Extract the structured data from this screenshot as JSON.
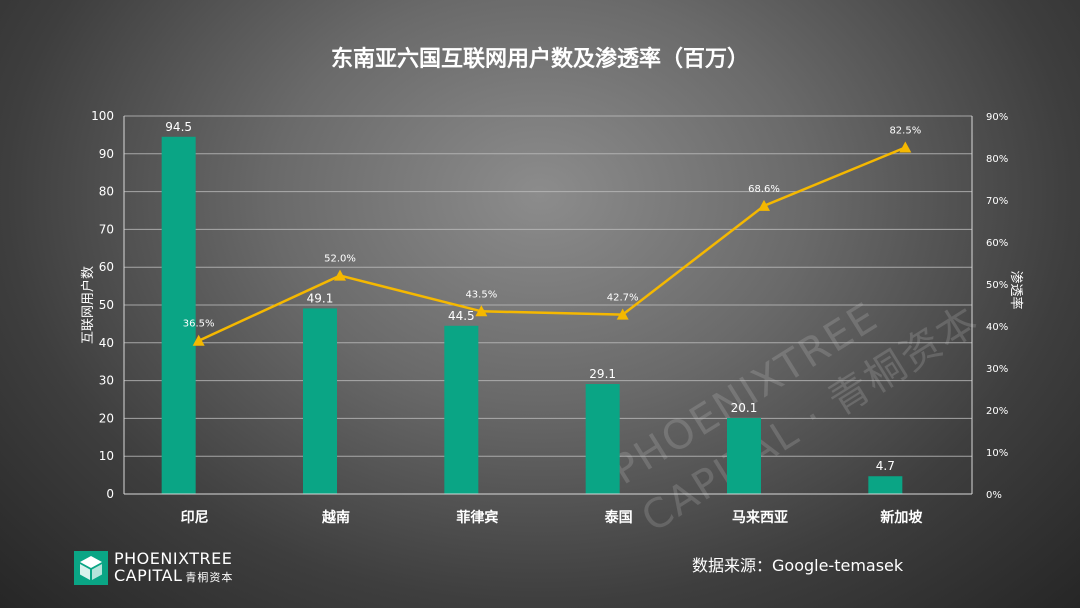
{
  "chart_data": {
    "type": "bar",
    "title": "东南亚六国互联网用户数及渗透率（百万）",
    "categories": [
      "印尼",
      "越南",
      "菲律宾",
      "泰国",
      "马来西亚",
      "新加坡"
    ],
    "series": [
      {
        "name": "互联网用户数",
        "type": "bar",
        "axis": "left",
        "values": [
          94.5,
          49.1,
          44.5,
          29.1,
          20.1,
          4.7
        ],
        "labels": [
          "94.5",
          "49.1",
          "44.5",
          "29.1",
          "20.1",
          "4.7"
        ],
        "color": "#0aa585"
      },
      {
        "name": "渗透率",
        "type": "line",
        "axis": "right",
        "values": [
          36.5,
          52.0,
          43.5,
          42.7,
          68.6,
          82.5
        ],
        "labels": [
          "36.5%",
          "52.0%",
          "43.5%",
          "42.7%",
          "68.6%",
          "82.5%"
        ],
        "color": "#f5b800"
      }
    ],
    "ylabel": "互联网用户数",
    "y2label": "渗透率",
    "ylim": [
      0,
      100
    ],
    "y2lim": [
      0,
      90
    ],
    "yticks": [
      "0",
      "10",
      "20",
      "30",
      "40",
      "50",
      "60",
      "70",
      "80",
      "90",
      "100"
    ],
    "y2ticks": [
      "0%",
      "10%",
      "20%",
      "30%",
      "40%",
      "50%",
      "60%",
      "70%",
      "80%",
      "90%"
    ],
    "grid": true,
    "legend": "none"
  },
  "footer": {
    "logo_line1": "PHOENIXTREE",
    "logo_line2": "CAPITAL",
    "logo_cn": "青桐资本",
    "source": "数据来源：Google-temasek"
  },
  "watermark": {
    "line1": "PHOENIXTREE",
    "line2": "CAPITAL · 青桐资本"
  },
  "colors": {
    "bar": "#0aa585",
    "line": "#f5b800",
    "text": "#ffffff"
  }
}
